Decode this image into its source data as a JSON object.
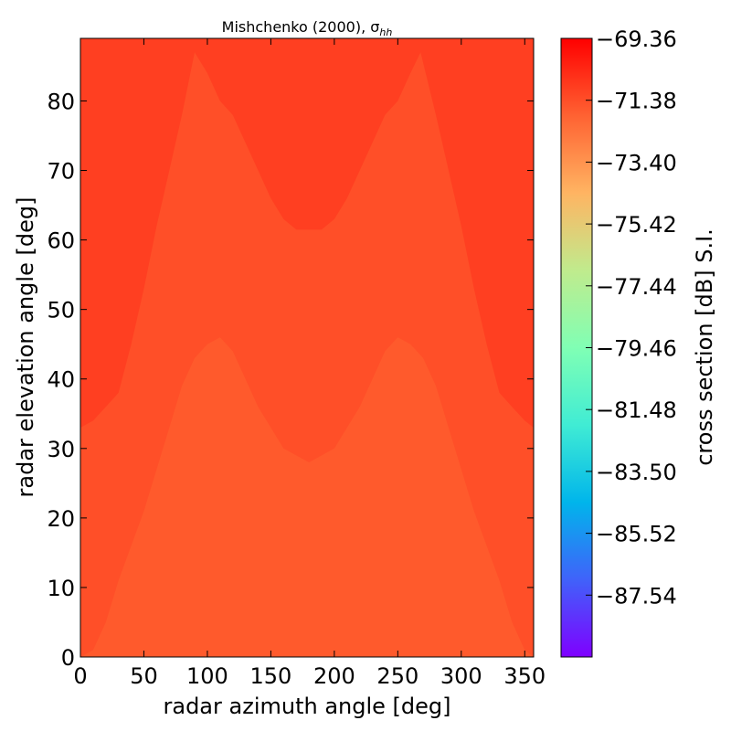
{
  "chart_data": {
    "type": "heatmap",
    "title": "Mishchenko (2000), σ",
    "title_subscript": "hh",
    "xlabel": "radar azimuth angle [deg]",
    "ylabel": "radar elevation angle [deg]",
    "colorbar_label": "cross section [dB] S.I.",
    "xlim": [
      0,
      357
    ],
    "ylim": [
      0,
      89
    ],
    "xticks": [
      0,
      50,
      100,
      150,
      200,
      250,
      300,
      350
    ],
    "yticks": [
      0,
      10,
      20,
      30,
      40,
      50,
      60,
      70,
      80
    ],
    "colorbar_range": [
      -89.56,
      -69.36
    ],
    "colorbar_ticks": [
      "−69.36",
      "−71.38",
      "−73.40",
      "−75.42",
      "−77.44",
      "−79.46",
      "−81.48",
      "−83.50",
      "−85.52",
      "−87.54"
    ],
    "colorbar_tick_values": [
      -69.36,
      -71.38,
      -73.4,
      -75.42,
      -77.44,
      -79.46,
      -81.48,
      -83.5,
      -85.52,
      -87.54
    ],
    "colormap": "rainbow",
    "region_colors": {
      "high": "#ff3f21",
      "low": "#ff5a2c"
    },
    "regions": [
      {
        "name": "upper-band",
        "value": -71.0,
        "color": "#ff3f21",
        "boundary": [
          [
            0,
            33
          ],
          [
            10,
            34
          ],
          [
            20,
            36
          ],
          [
            30,
            38
          ],
          [
            40,
            45
          ],
          [
            50,
            53
          ],
          [
            60,
            62
          ],
          [
            70,
            70
          ],
          [
            80,
            78
          ],
          [
            90,
            87
          ],
          [
            100,
            84
          ],
          [
            110,
            80
          ],
          [
            120,
            78
          ],
          [
            130,
            74
          ],
          [
            140,
            70
          ],
          [
            150,
            66
          ],
          [
            160,
            63
          ],
          [
            170,
            61.5
          ],
          [
            180,
            61.5
          ],
          [
            190,
            61.5
          ],
          [
            200,
            63
          ],
          [
            210,
            66
          ],
          [
            220,
            70
          ],
          [
            230,
            74
          ],
          [
            240,
            78
          ],
          [
            250,
            80
          ],
          [
            260,
            84
          ],
          [
            268,
            87
          ],
          [
            280,
            78
          ],
          [
            290,
            70
          ],
          [
            300,
            62
          ],
          [
            310,
            53
          ],
          [
            320,
            45
          ],
          [
            330,
            38
          ],
          [
            340,
            36
          ],
          [
            350,
            34
          ],
          [
            357,
            33
          ]
        ]
      },
      {
        "name": "lower-band",
        "value": -72.0,
        "color": "#ff5a2c",
        "boundary": [
          [
            0,
            0
          ],
          [
            10,
            1
          ],
          [
            20,
            5
          ],
          [
            30,
            11
          ],
          [
            40,
            16
          ],
          [
            50,
            21
          ],
          [
            60,
            27
          ],
          [
            70,
            33
          ],
          [
            80,
            39
          ],
          [
            90,
            43
          ],
          [
            100,
            45
          ],
          [
            110,
            46
          ],
          [
            120,
            44
          ],
          [
            130,
            40
          ],
          [
            140,
            36
          ],
          [
            150,
            33
          ],
          [
            160,
            30
          ],
          [
            170,
            29
          ],
          [
            180,
            28
          ],
          [
            190,
            29
          ],
          [
            200,
            30
          ],
          [
            210,
            33
          ],
          [
            220,
            36
          ],
          [
            230,
            40
          ],
          [
            240,
            44
          ],
          [
            250,
            46
          ],
          [
            260,
            45
          ],
          [
            270,
            43
          ],
          [
            280,
            39
          ],
          [
            290,
            33
          ],
          [
            300,
            27
          ],
          [
            310,
            21
          ],
          [
            320,
            16
          ],
          [
            330,
            11
          ],
          [
            340,
            5
          ],
          [
            350,
            1
          ],
          [
            357,
            0
          ]
        ]
      }
    ]
  }
}
